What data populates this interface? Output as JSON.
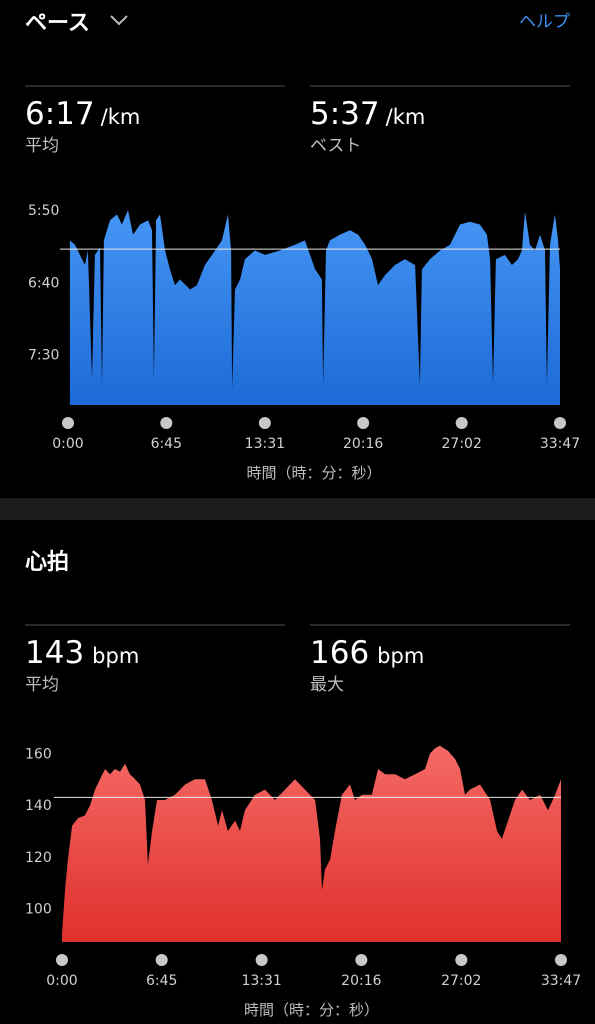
{
  "header": {
    "title": "ペース",
    "help": "ヘルプ"
  },
  "pace_stats": [
    {
      "value": "6:17",
      "unit": "/km",
      "label": "平均"
    },
    {
      "value": "5:37",
      "unit": "/km",
      "label": "ベスト"
    }
  ],
  "heart": {
    "title": "心拍",
    "stats": [
      {
        "value": "143",
        "unit": "bpm",
        "label": "平均"
      },
      {
        "value": "166",
        "unit": "bpm",
        "label": "最大"
      }
    ]
  },
  "chart_data": [
    {
      "type": "area",
      "x_label": "時間（時：分：秒）",
      "color": "#4596f5",
      "color_bottom": "#1c6ad6",
      "xlim": [
        0,
        2027
      ],
      "ylim": [
        485,
        343
      ],
      "mean": 377,
      "xticks": [
        {
          "value": 0,
          "label": "0:00"
        },
        {
          "value": 405,
          "label": "6:45"
        },
        {
          "value": 811,
          "label": "13:31"
        },
        {
          "value": 1216,
          "label": "20:16"
        },
        {
          "value": 1622,
          "label": "27:02"
        },
        {
          "value": 2027,
          "label": "33:47"
        }
      ],
      "yticks": [
        {
          "value": 350,
          "label": "5:50"
        },
        {
          "value": 400,
          "label": "6:40"
        },
        {
          "value": 450,
          "label": "7:30"
        }
      ],
      "x": [
        8,
        29,
        49,
        70,
        82,
        99,
        111,
        132,
        140,
        148,
        173,
        202,
        222,
        247,
        268,
        297,
        330,
        346,
        354,
        363,
        379,
        400,
        420,
        441,
        461,
        503,
        531,
        564,
        606,
        634,
        659,
        672,
        676,
        688,
        709,
        729,
        770,
        812,
        873,
        935,
        976,
        1018,
        1046,
        1051,
        1063,
        1079,
        1121,
        1162,
        1195,
        1224,
        1253,
        1277,
        1306,
        1347,
        1388,
        1430,
        1450,
        1458,
        1491,
        1533,
        1574,
        1615,
        1656,
        1697,
        1726,
        1739,
        1751,
        1763,
        1800,
        1829,
        1854,
        1870,
        1883,
        1903,
        1924,
        1945,
        1965,
        1973,
        1986,
        2006,
        2019,
        2027
      ],
      "values": [
        371,
        374,
        381,
        388,
        378,
        467,
        381,
        376,
        471,
        371,
        357,
        353,
        360,
        350,
        367,
        360,
        357,
        364,
        467,
        357,
        353,
        378,
        391,
        402,
        398,
        405,
        402,
        388,
        378,
        371,
        353,
        378,
        474,
        405,
        398,
        384,
        378,
        381,
        378,
        374,
        371,
        391,
        398,
        471,
        378,
        371,
        367,
        364,
        367,
        374,
        384,
        402,
        395,
        388,
        384,
        388,
        471,
        391,
        384,
        378,
        374,
        360,
        358,
        360,
        367,
        384,
        471,
        384,
        381,
        388,
        384,
        378,
        351,
        374,
        378,
        367,
        378,
        471,
        374,
        353,
        371,
        391
      ]
    },
    {
      "type": "area",
      "x_label": "時間（時：分：秒）",
      "color": "#f46a66",
      "color_bottom": "#e0302c",
      "xlim": [
        0,
        2027
      ],
      "ylim": [
        87,
        166
      ],
      "mean": 143,
      "xticks": [
        {
          "value": 0,
          "label": "0:00"
        },
        {
          "value": 405,
          "label": "6:45"
        },
        {
          "value": 811,
          "label": "13:31"
        },
        {
          "value": 1216,
          "label": "20:16"
        },
        {
          "value": 1622,
          "label": "27:02"
        },
        {
          "value": 2027,
          "label": "33:47"
        }
      ],
      "yticks": [
        100,
        120,
        140,
        160
      ],
      "x": [
        0,
        12,
        24,
        41,
        65,
        93,
        114,
        134,
        154,
        175,
        195,
        215,
        236,
        256,
        276,
        297,
        317,
        337,
        349,
        366,
        386,
        418,
        459,
        500,
        540,
        581,
        609,
        634,
        650,
        674,
        703,
        723,
        743,
        784,
        825,
        865,
        906,
        946,
        987,
        1028,
        1048,
        1056,
        1068,
        1089,
        1109,
        1137,
        1170,
        1190,
        1219,
        1259,
        1284,
        1312,
        1353,
        1393,
        1434,
        1475,
        1495,
        1515,
        1535,
        1568,
        1596,
        1617,
        1637,
        1657,
        1698,
        1739,
        1767,
        1787,
        1812,
        1840,
        1869,
        1901,
        1942,
        1974,
        2003,
        2027
      ],
      "values": [
        90,
        107,
        119,
        132,
        135,
        136,
        140,
        146,
        150,
        154,
        152,
        154,
        153,
        156,
        152,
        150,
        148,
        142,
        117,
        130,
        142,
        142,
        144,
        148,
        150,
        150,
        142,
        132,
        138,
        130,
        134,
        130,
        138,
        144,
        146,
        142,
        146,
        150,
        146,
        142,
        127,
        107,
        115,
        119,
        130,
        144,
        148,
        142,
        144,
        144,
        154,
        152,
        152,
        150,
        152,
        154,
        160,
        162,
        163,
        161,
        158,
        154,
        144,
        146,
        148,
        142,
        130,
        127,
        134,
        142,
        146,
        142,
        144,
        138,
        144,
        150
      ]
    }
  ]
}
